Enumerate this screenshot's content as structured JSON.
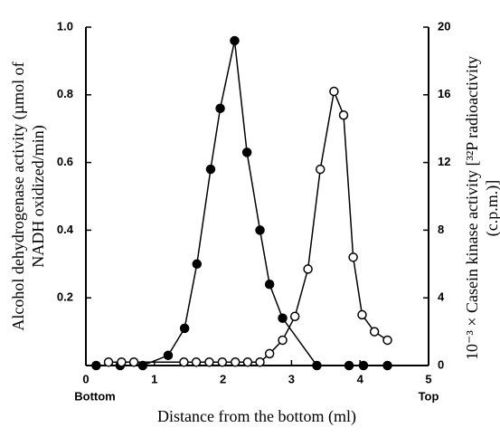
{
  "chart_data": {
    "type": "line",
    "x_label": "Distance from the bottom (ml)",
    "y_label": [
      "Alcohol dehydrogenase activity (µmol of",
      "NADH oxidized/min)"
    ],
    "y2_label": [
      "10⁻³ × Casein kinase activity [³²P radioactivity",
      "(c.p.m.)]"
    ],
    "annotations": [
      "Bottom",
      "Top"
    ],
    "xlim": [
      0,
      5
    ],
    "xticks": [
      0,
      1,
      2,
      3,
      4,
      5
    ],
    "ylim": [
      0,
      1
    ],
    "yticks": [
      0.2,
      0.4,
      0.6,
      0.8,
      {
        "value": 1,
        "label": "1.0"
      }
    ],
    "y2lim": [
      0,
      20
    ],
    "y2ticks": [
      0,
      4,
      8,
      12,
      16,
      20
    ],
    "series": [
      {
        "marker": "filled",
        "color": "#000000",
        "axis": "y",
        "x": [
          0.15,
          0.5,
          0.83,
          1.2,
          1.44,
          1.62,
          1.82,
          1.96,
          2.17,
          2.35,
          2.54,
          2.68,
          2.87,
          3.37,
          3.84,
          4.05,
          4.4
        ],
        "values": [
          0,
          0,
          0,
          0.03,
          0.11,
          0.3,
          0.58,
          0.76,
          0.96,
          0.63,
          0.4,
          0.24,
          0.14,
          0,
          0,
          0,
          0
        ]
      },
      {
        "marker": "open",
        "color": "#000000",
        "axis": "y2",
        "x": [
          0.33,
          0.52,
          0.7,
          1.43,
          1.61,
          1.8,
          1.99,
          2.18,
          2.36,
          2.54,
          2.68,
          2.87,
          3.05,
          3.24,
          3.42,
          3.62,
          3.76,
          3.9,
          4.03,
          4.21,
          4.4
        ],
        "values": [
          0.2,
          0.2,
          0.2,
          0.2,
          0.2,
          0.2,
          0.2,
          0.2,
          0.2,
          0.2,
          0.7,
          1.5,
          2.9,
          5.7,
          11.6,
          16.2,
          14.8,
          6.4,
          3.0,
          2.0,
          1.5
        ]
      }
    ]
  }
}
